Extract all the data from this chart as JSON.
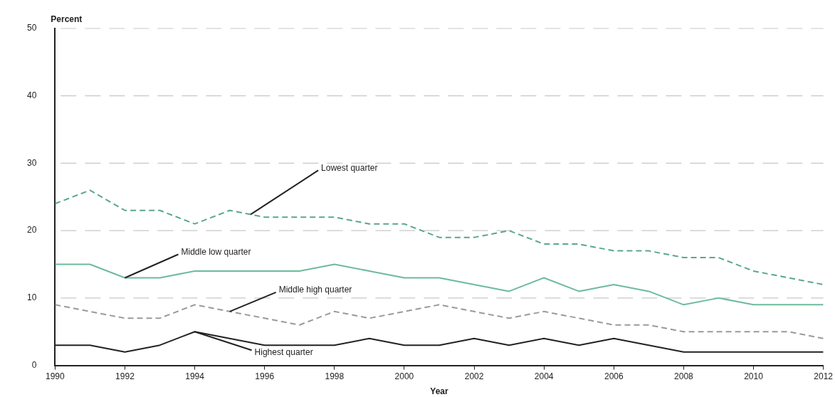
{
  "chart_data": {
    "type": "line",
    "xlabel": "Year",
    "ylabel": "Percent",
    "x": [
      1990,
      1991,
      1992,
      1993,
      1994,
      1995,
      1996,
      1997,
      1998,
      1999,
      2000,
      2001,
      2002,
      2003,
      2004,
      2005,
      2006,
      2007,
      2008,
      2009,
      2010,
      2011,
      2012
    ],
    "series": [
      {
        "color": "#5aa888",
        "line_style": "dashed",
        "values": [
          24,
          26,
          23,
          23,
          21,
          23,
          22,
          22,
          22,
          21,
          21,
          19,
          19,
          20,
          18,
          18,
          17,
          17,
          16,
          16,
          14,
          13,
          12
        ]
      },
      {
        "color": "#6dbb9b",
        "line_style": "solid",
        "values": [
          15,
          15,
          13,
          13,
          14,
          14,
          14,
          14,
          15,
          14,
          13,
          13,
          12,
          11,
          13,
          11,
          12,
          11,
          9,
          10,
          9,
          9,
          9
        ]
      },
      {
        "color": "#9a9a9a",
        "line_style": "dashed",
        "values": [
          9,
          8,
          7,
          7,
          9,
          8,
          7,
          6,
          8,
          7,
          8,
          9,
          8,
          7,
          8,
          7,
          6,
          6,
          5,
          5,
          5,
          5,
          4
        ]
      },
      {
        "color": "#222222",
        "line_style": "solid",
        "values": [
          3,
          3,
          2,
          3,
          5,
          4,
          3,
          3,
          3,
          4,
          3,
          3,
          4,
          3,
          4,
          3,
          4,
          3,
          2,
          2,
          2,
          2,
          2
        ]
      }
    ],
    "annotations": [
      {
        "text": "Lowest quarter",
        "x": 1995.6,
        "y": 22.4
      },
      {
        "text": "Middle low quarter",
        "x": 1992,
        "y": 13
      },
      {
        "text": "Middle high quarter",
        "x": 1995,
        "y": 8
      },
      {
        "text": "Highest quarter",
        "x": 1994,
        "y": 5
      }
    ],
    "xlim": [
      1990,
      2012
    ],
    "xticks": [
      1990,
      1992,
      1994,
      1996,
      1998,
      2000,
      2002,
      2004,
      2006,
      2008,
      2010,
      2012
    ],
    "ylim": [
      0,
      50
    ],
    "yticks": [
      0,
      10,
      20,
      30,
      40,
      50
    ],
    "grid": "y",
    "legend": false,
    "marker": "none"
  }
}
